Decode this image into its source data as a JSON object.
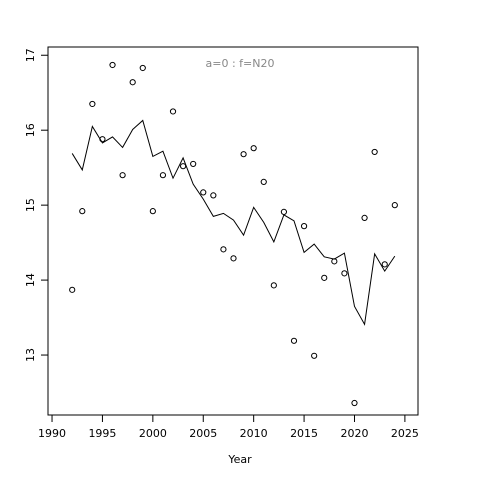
{
  "chart_data": {
    "type": "scatter",
    "annotation": "a=0  :  f=N20",
    "x_label": "Year",
    "x": [
      1992,
      1993,
      1994,
      1995,
      1996,
      1997,
      1998,
      1999,
      2000,
      2001,
      2002,
      2003,
      2004,
      2005,
      2006,
      2007,
      2008,
      2009,
      2010,
      2011,
      2012,
      2013,
      2014,
      2015,
      2016,
      2017,
      2018,
      2019,
      2020,
      2021,
      2022,
      2023,
      2024
    ],
    "series": [
      {
        "style": "points",
        "color": "#000000",
        "values": [
          13.87,
          14.92,
          16.35,
          15.88,
          16.87,
          15.4,
          16.64,
          16.83,
          14.92,
          15.4,
          16.25,
          15.52,
          15.55,
          15.17,
          15.13,
          14.41,
          14.29,
          15.68,
          15.76,
          15.31,
          13.93,
          14.91,
          13.19,
          14.72,
          12.99,
          14.03,
          14.25,
          14.09,
          12.36,
          14.83,
          15.71,
          14.21,
          15.0
        ]
      },
      {
        "style": "line",
        "color": "#000000",
        "values": [
          15.69,
          15.47,
          16.05,
          15.83,
          15.91,
          15.77,
          16.01,
          16.13,
          15.65,
          15.72,
          15.36,
          15.63,
          15.28,
          15.08,
          14.85,
          14.89,
          14.8,
          14.6,
          14.97,
          14.77,
          14.51,
          14.87,
          14.79,
          14.37,
          14.48,
          14.31,
          14.28,
          14.36,
          13.65,
          13.41,
          14.35,
          14.12,
          14.32
        ]
      }
    ],
    "xlim": [
      1989.6,
      2026.3
    ],
    "xticks": [
      1990,
      1995,
      2000,
      2005,
      2010,
      2015,
      2020,
      2025
    ],
    "ylim": [
      12.2,
      17.11
    ],
    "yticks": [
      13,
      14,
      15,
      16,
      17
    ]
  }
}
